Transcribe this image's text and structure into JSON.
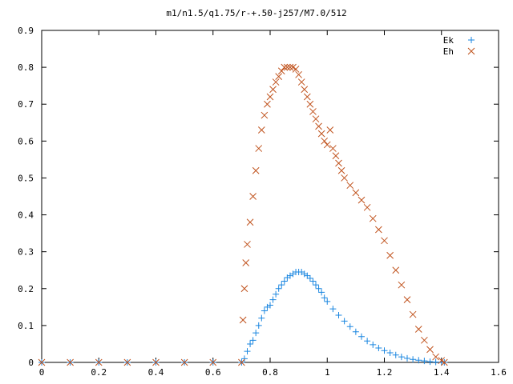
{
  "chart_data": {
    "type": "scatter",
    "title": "m1/n1.5/q1.75/r-+.50-j257/M7.0/512",
    "xlabel": "",
    "ylabel": "",
    "xlim": [
      0,
      1.6
    ],
    "ylim": [
      0,
      0.9
    ],
    "x_ticks": [
      "0",
      "0.2",
      "0.4",
      "0.6",
      "0.8",
      "1",
      "1.2",
      "1.4",
      "1.6"
    ],
    "y_ticks": [
      "0",
      "0.1",
      "0.2",
      "0.3",
      "0.4",
      "0.5",
      "0.6",
      "0.7",
      "0.8",
      "0.9"
    ],
    "grid": false,
    "legend": "top-right",
    "series": [
      {
        "name": "Ek",
        "marker": "plus",
        "color": "#1a86e0",
        "x": [
          0,
          0.1,
          0.2,
          0.3,
          0.4,
          0.5,
          0.6,
          0.7,
          0.71,
          0.72,
          0.73,
          0.74,
          0.75,
          0.76,
          0.77,
          0.78,
          0.79,
          0.8,
          0.81,
          0.82,
          0.83,
          0.84,
          0.85,
          0.86,
          0.87,
          0.88,
          0.89,
          0.9,
          0.91,
          0.92,
          0.93,
          0.94,
          0.95,
          0.96,
          0.97,
          0.98,
          0.99,
          1.0,
          1.02,
          1.04,
          1.06,
          1.08,
          1.1,
          1.12,
          1.14,
          1.16,
          1.18,
          1.2,
          1.22,
          1.24,
          1.26,
          1.28,
          1.3,
          1.32,
          1.34,
          1.36,
          1.38,
          1.4,
          1.41
        ],
        "y": [
          0,
          0,
          0,
          0,
          0,
          0,
          0,
          0,
          0.01,
          0.03,
          0.05,
          0.06,
          0.08,
          0.1,
          0.12,
          0.14,
          0.15,
          0.155,
          0.17,
          0.185,
          0.2,
          0.21,
          0.22,
          0.23,
          0.235,
          0.24,
          0.245,
          0.245,
          0.245,
          0.24,
          0.235,
          0.228,
          0.22,
          0.21,
          0.2,
          0.19,
          0.175,
          0.165,
          0.145,
          0.128,
          0.112,
          0.097,
          0.083,
          0.07,
          0.058,
          0.048,
          0.039,
          0.032,
          0.026,
          0.02,
          0.015,
          0.011,
          0.008,
          0.006,
          0.004,
          0.002,
          0.001,
          0.0005,
          0
        ]
      },
      {
        "name": "Eh",
        "marker": "cross",
        "color": "#c0521d",
        "x": [
          0,
          0.1,
          0.2,
          0.3,
          0.4,
          0.5,
          0.6,
          0.7,
          0.705,
          0.71,
          0.715,
          0.72,
          0.73,
          0.74,
          0.75,
          0.76,
          0.77,
          0.78,
          0.79,
          0.8,
          0.81,
          0.82,
          0.83,
          0.84,
          0.85,
          0.86,
          0.87,
          0.88,
          0.89,
          0.9,
          0.91,
          0.92,
          0.93,
          0.94,
          0.95,
          0.96,
          0.97,
          0.98,
          0.99,
          1.0,
          1.01,
          1.02,
          1.03,
          1.04,
          1.05,
          1.06,
          1.08,
          1.1,
          1.12,
          1.14,
          1.16,
          1.18,
          1.2,
          1.22,
          1.24,
          1.26,
          1.28,
          1.3,
          1.32,
          1.34,
          1.36,
          1.38,
          1.4,
          1.41
        ],
        "y": [
          0,
          0,
          0,
          0,
          0,
          0,
          0,
          0,
          0.115,
          0.2,
          0.27,
          0.32,
          0.38,
          0.45,
          0.52,
          0.58,
          0.63,
          0.67,
          0.7,
          0.72,
          0.74,
          0.76,
          0.775,
          0.79,
          0.8,
          0.8,
          0.8,
          0.8,
          0.795,
          0.78,
          0.76,
          0.74,
          0.72,
          0.7,
          0.68,
          0.66,
          0.64,
          0.62,
          0.6,
          0.59,
          0.63,
          0.58,
          0.56,
          0.54,
          0.52,
          0.5,
          0.48,
          0.46,
          0.44,
          0.42,
          0.39,
          0.36,
          0.33,
          0.29,
          0.25,
          0.21,
          0.17,
          0.13,
          0.09,
          0.06,
          0.035,
          0.015,
          0.005,
          0
        ]
      }
    ]
  }
}
